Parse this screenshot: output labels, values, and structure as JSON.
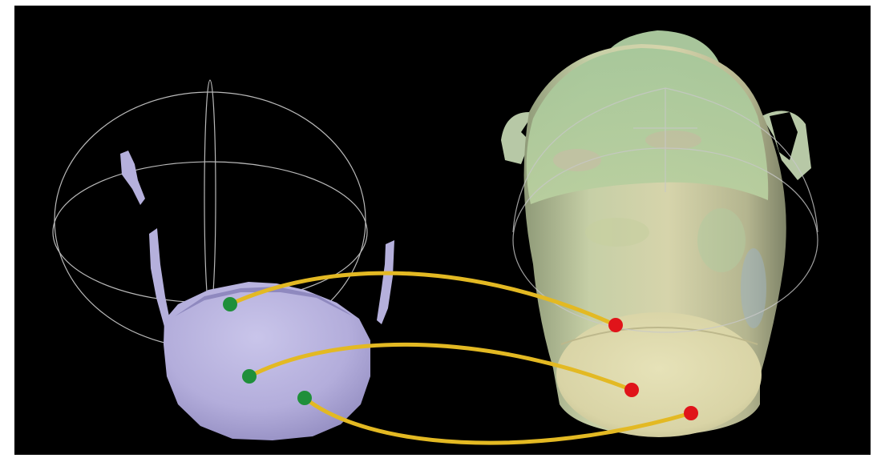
{
  "viewport": {
    "background_color": "#000000",
    "frame_color": "#ffffff"
  },
  "left_object": {
    "kind": "partial-scan",
    "mesh_color": "#b5b0dc",
    "mesh_shadow_color": "#8f89bf",
    "gizmo_color": "#b9b9b9"
  },
  "right_object": {
    "kind": "vase-model",
    "base_color": "#d9d5a8",
    "upper_color": "#a9c89a",
    "rim_color": "#b7c8a6",
    "gizmo_color": "#c8c8c8"
  },
  "correspondences": {
    "line_color": "#e3b923",
    "source_point_color": "#1f8f3a",
    "target_point_color": "#e0141a",
    "count": 3,
    "pairs": [
      {
        "id": "pair-1"
      },
      {
        "id": "pair-2"
      },
      {
        "id": "pair-3"
      }
    ]
  }
}
